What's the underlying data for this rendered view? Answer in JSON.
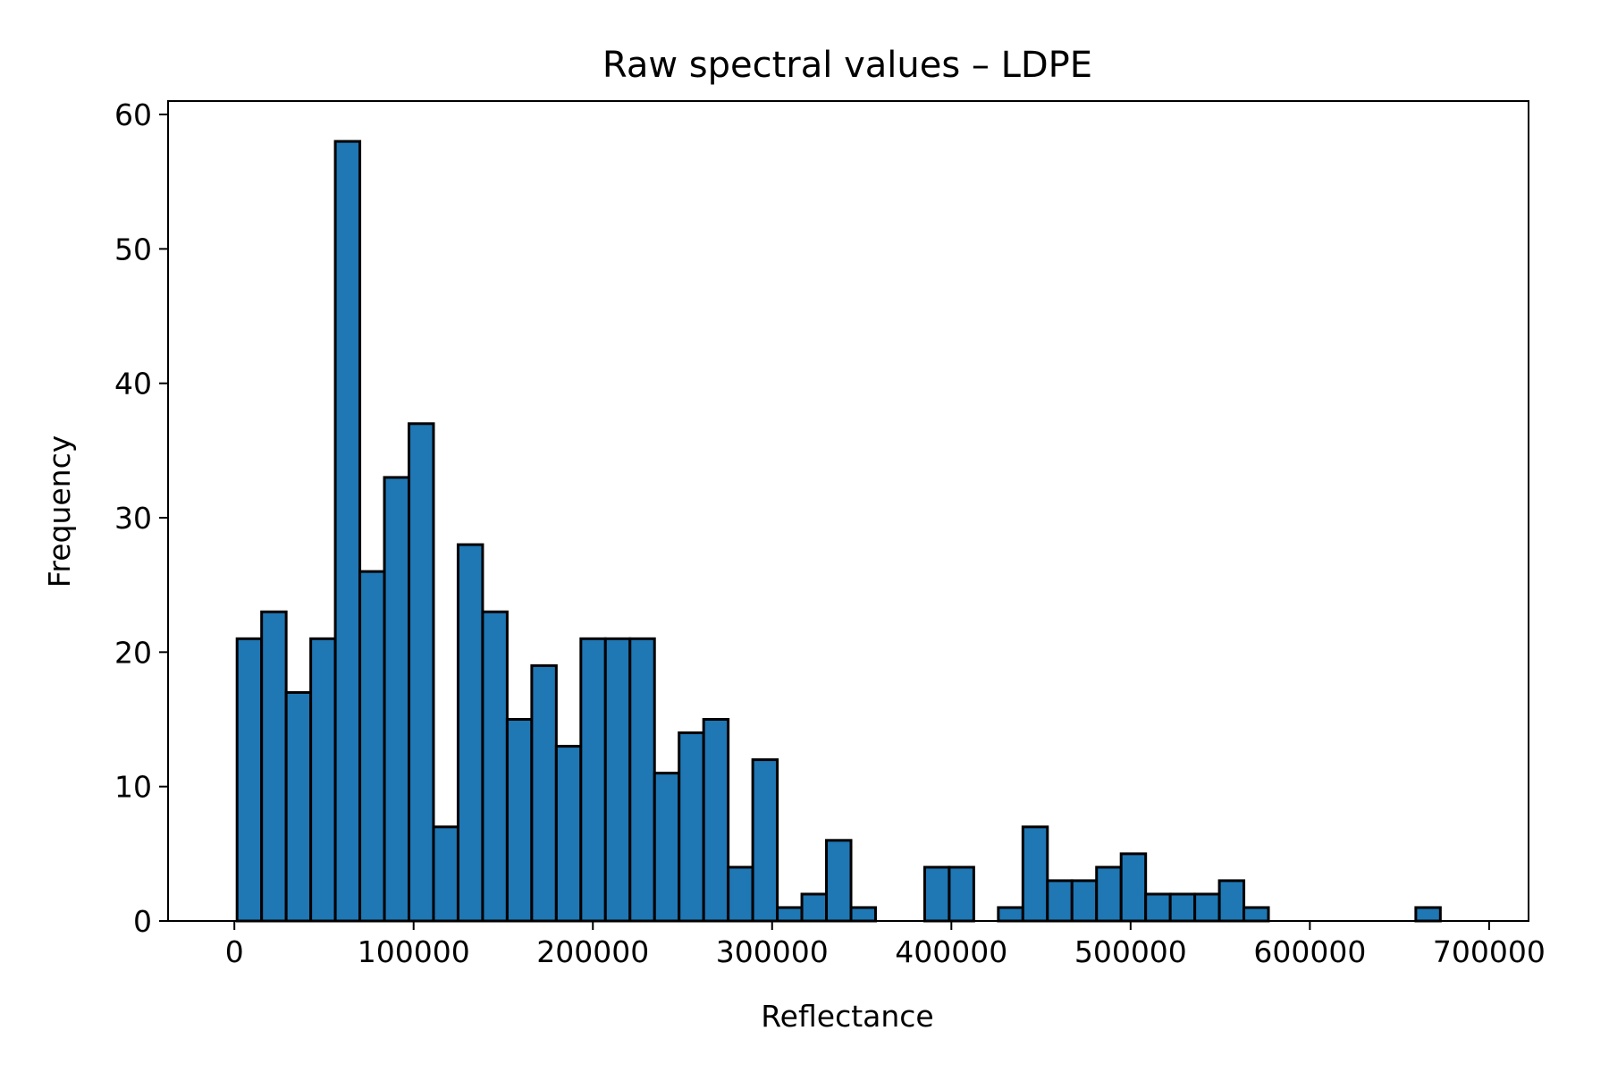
{
  "chart_data": {
    "type": "bar",
    "title": "Raw spectral values – LDPE",
    "xlabel": "Reflectance",
    "ylabel": "Frequency",
    "xlim": [
      -37000,
      722000
    ],
    "ylim": [
      0,
      61
    ],
    "xticks": [
      0,
      100000,
      200000,
      300000,
      400000,
      500000,
      600000,
      700000
    ],
    "yticks": [
      0,
      10,
      20,
      30,
      40,
      50,
      60
    ],
    "bin_start": 1500,
    "bin_width": 13700,
    "values": [
      21,
      23,
      17,
      21,
      58,
      26,
      33,
      37,
      7,
      28,
      23,
      15,
      19,
      13,
      21,
      21,
      21,
      11,
      14,
      15,
      4,
      12,
      1,
      2,
      6,
      1,
      0,
      0,
      4,
      4,
      0,
      1,
      7,
      3,
      3,
      4,
      5,
      2,
      2,
      2,
      3,
      1,
      0,
      0,
      0,
      0,
      0,
      0,
      1
    ],
    "bar_color": "#1f77b4",
    "edge_color": "#000000",
    "grid": false,
    "legend": "none"
  }
}
